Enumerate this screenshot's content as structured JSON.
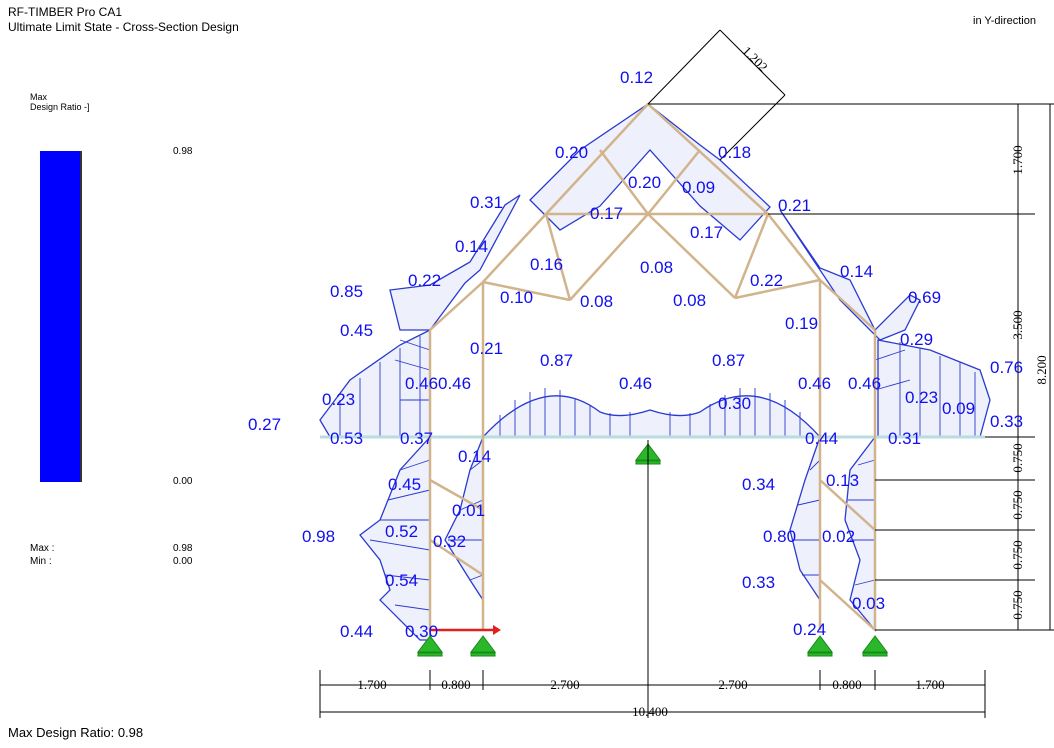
{
  "header": {
    "program": "RF-TIMBER Pro CA1",
    "subtitle": "Ultimate Limit State - Cross-Section Design",
    "direction": "in Y-direction"
  },
  "legend": {
    "title_line1": "Max",
    "title_line2": "Design Ratio -]",
    "scale_top": "0.98",
    "scale_bottom": "0.00",
    "max_label": "Max :",
    "max_value": "0.98",
    "min_label": "Min :",
    "min_value": "0.00",
    "bar_color": "#0000ff"
  },
  "footer": {
    "max_design_ratio": "Max Design Ratio: 0.98"
  },
  "colors": {
    "labels": "#1010ee",
    "members": "#d2b48c",
    "diagram": "#2a3ad0",
    "supports": "#22aa22"
  },
  "ratio_labels": [
    "0.12",
    "0.20",
    "0.18",
    "0.20",
    "0.09",
    "0.31",
    "0.17",
    "0.21",
    "0.17",
    "0.14",
    "0.16",
    "0.08",
    "0.22",
    "0.22",
    "0.14",
    "0.85",
    "0.10",
    "0.08",
    "0.08",
    "0.69",
    "0.45",
    "0.19",
    "0.29",
    "0.21",
    "0.87",
    "0.87",
    "0.76",
    "0.23",
    "0.46",
    "0.46",
    "0.46",
    "0.46",
    "0.46",
    "0.23",
    "0.27",
    "0.53",
    "0.37",
    "0.30",
    "0.44",
    "0.31",
    "0.09",
    "0.33",
    "0.14",
    "0.34",
    "0.13",
    "0.45",
    "0.01",
    "0.98",
    "0.52",
    "0.32",
    "0.80",
    "0.02",
    "0.54",
    "0.33",
    "0.03",
    "0.44",
    "0.30",
    "0.24"
  ],
  "dimensions": {
    "horizontal": [
      "1.700",
      "0.800",
      "2.700",
      "2.700",
      "0.800",
      "1.700"
    ],
    "total": "10.400",
    "diagonal": "1.202",
    "vertical": [
      "1.700",
      "3.500",
      "0.750",
      "0.750",
      "0.750",
      "0.750"
    ],
    "vertical_total": "8.200"
  }
}
